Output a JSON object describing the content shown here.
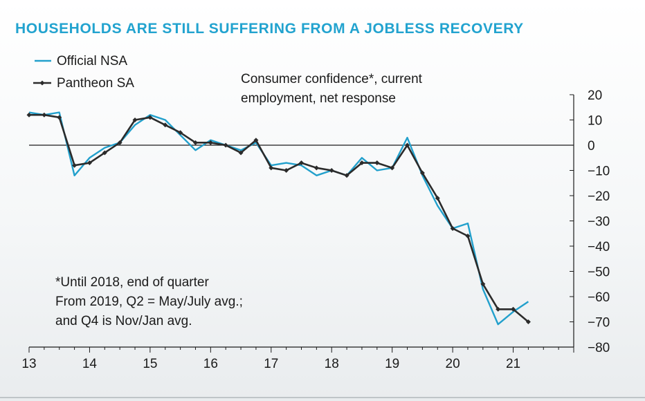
{
  "title": "HOUSEHOLDS ARE STILL SUFFERING FROM A JOBLESS RECOVERY",
  "chart_data": {
    "type": "line",
    "title": "HOUSEHOLDS ARE STILL SUFFERING FROM A JOBLESS RECOVERY",
    "annotation_top": [
      "Consumer confidence*, current",
      "employment, net response"
    ],
    "annotation_note": [
      "*Until 2018, end of quarter",
      "From 2019, Q2 = May/July avg.;",
      "and Q4 is Nov/Jan avg."
    ],
    "xlim": [
      13,
      22
    ],
    "ylim": [
      -80,
      20
    ],
    "x_ticks": [
      "13",
      "14",
      "15",
      "16",
      "17",
      "18",
      "19",
      "20",
      "21"
    ],
    "y_ticks": [
      "20",
      "10",
      "0",
      "−10",
      "−20",
      "−30",
      "−40",
      "−50",
      "−60",
      "−70",
      "−80"
    ],
    "y_axis_side": "right",
    "zero_line": true,
    "legend_position": "top-left",
    "series": [
      {
        "name": "Official NSA",
        "color": "#22a0cc",
        "x": [
          13.0,
          13.25,
          13.5,
          13.75,
          14.0,
          14.25,
          14.5,
          14.75,
          15.0,
          15.25,
          15.5,
          15.75,
          16.0,
          16.25,
          16.5,
          16.75,
          17.0,
          17.25,
          17.5,
          17.75,
          18.0,
          18.25,
          18.5,
          18.75,
          19.0,
          19.25,
          19.5,
          19.75,
          20.0,
          20.25,
          20.5,
          20.75,
          21.0,
          21.25
        ],
        "y": [
          13,
          12,
          13,
          -12,
          -5,
          -1,
          1,
          8,
          12,
          10,
          4,
          -2,
          2,
          0,
          -2,
          1,
          -8,
          -7,
          -8,
          -12,
          -10,
          -12,
          -5,
          -10,
          -9,
          3,
          -12,
          -24,
          -33,
          -31,
          -57,
          -71,
          -66,
          -62
        ]
      },
      {
        "name": "Pantheon SA",
        "color": "#2b2b2b",
        "x": [
          13.0,
          13.25,
          13.5,
          13.75,
          14.0,
          14.25,
          14.5,
          14.75,
          15.0,
          15.25,
          15.5,
          15.75,
          16.0,
          16.25,
          16.5,
          16.75,
          17.0,
          17.25,
          17.5,
          17.75,
          18.0,
          18.25,
          18.5,
          18.75,
          19.0,
          19.25,
          19.5,
          19.75,
          20.0,
          20.25,
          20.5,
          20.75,
          21.0,
          21.25
        ],
        "y": [
          12,
          12,
          11,
          -8,
          -7,
          -3,
          1,
          10,
          11,
          8,
          5,
          1,
          1,
          0,
          -3,
          2,
          -9,
          -10,
          -7,
          -9,
          -10,
          -12,
          -7,
          -7,
          -9,
          0,
          -11,
          -21,
          -33,
          -36,
          -55,
          -65,
          -65,
          -70
        ]
      }
    ]
  }
}
